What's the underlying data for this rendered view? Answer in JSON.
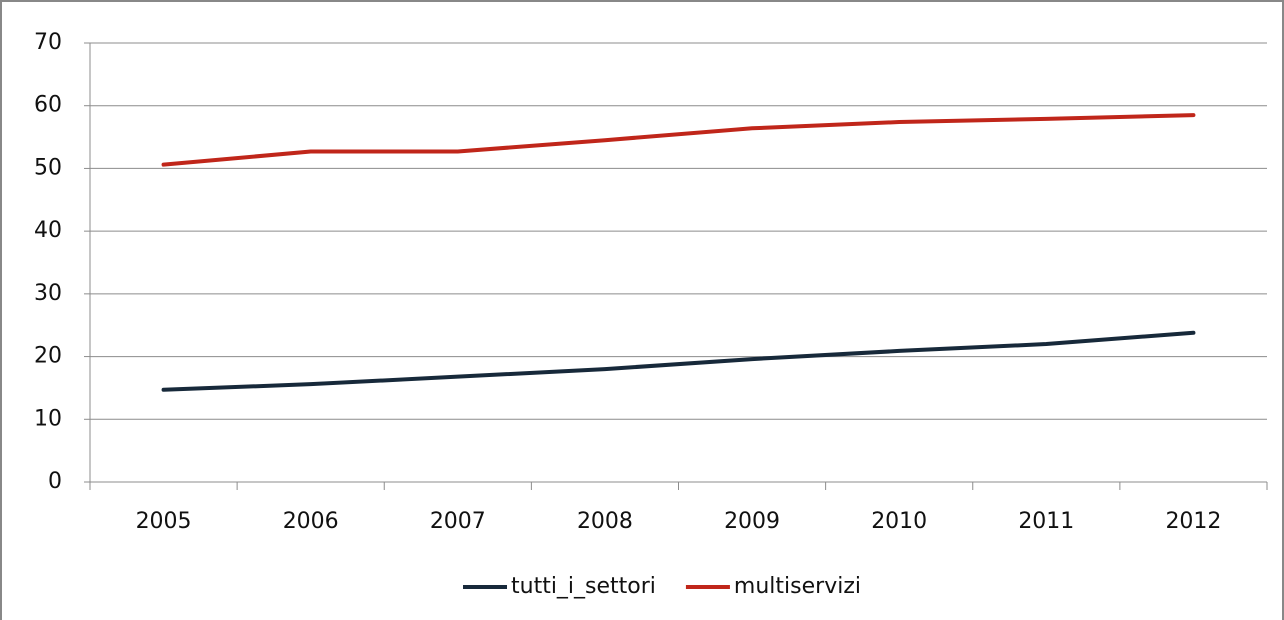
{
  "chart_data": {
    "type": "line",
    "categories": [
      "2005",
      "2006",
      "2007",
      "2008",
      "2009",
      "2010",
      "2011",
      "2012"
    ],
    "series": [
      {
        "name": "tutti_i_settori",
        "color": "#17293a",
        "values": [
          14.7,
          15.6,
          16.8,
          18.0,
          19.6,
          20.9,
          22.0,
          23.8
        ]
      },
      {
        "name": "multiservizi",
        "color": "#c0261a",
        "values": [
          50.6,
          52.7,
          52.7,
          54.5,
          56.4,
          57.4,
          57.9,
          58.5
        ]
      }
    ],
    "ylim": [
      0,
      70
    ],
    "yticks": [
      0,
      10,
      20,
      30,
      40,
      50,
      60,
      70
    ],
    "grid": true,
    "legend": "bottom"
  }
}
